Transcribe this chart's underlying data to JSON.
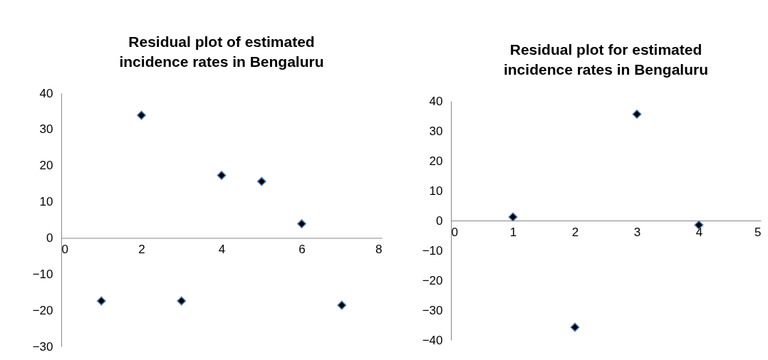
{
  "chart_data": [
    {
      "type": "scatter",
      "title": "Residual plot of estimated incidence rates in Bengaluru",
      "x": [
        1,
        2,
        3,
        4,
        5,
        6,
        7
      ],
      "values": [
        -17.4,
        33.9,
        -17.4,
        17.3,
        15.6,
        3.9,
        -18.6
      ],
      "color": "#000000",
      "marker": "diamond",
      "xlim": [
        0,
        8
      ],
      "xticks": [
        0,
        2,
        4,
        6,
        8
      ],
      "ylim": [
        -30,
        40
      ],
      "yticks": [
        -30,
        -20,
        -10,
        0,
        10,
        20,
        30,
        40
      ]
    },
    {
      "type": "scatter",
      "title": "Residual plot for estimated incidence rates in Bengaluru",
      "x": [
        1,
        2,
        3,
        4
      ],
      "values": [
        1.2,
        -35.7,
        35.6,
        -1.5
      ],
      "color": "#000000",
      "marker": "diamond",
      "xlim": [
        0,
        5
      ],
      "xticks": [
        0,
        1,
        2,
        3,
        4,
        5
      ],
      "ylim": [
        -40,
        40
      ],
      "yticks": [
        -40,
        -30,
        -20,
        -10,
        0,
        10,
        20,
        30,
        40
      ]
    }
  ]
}
